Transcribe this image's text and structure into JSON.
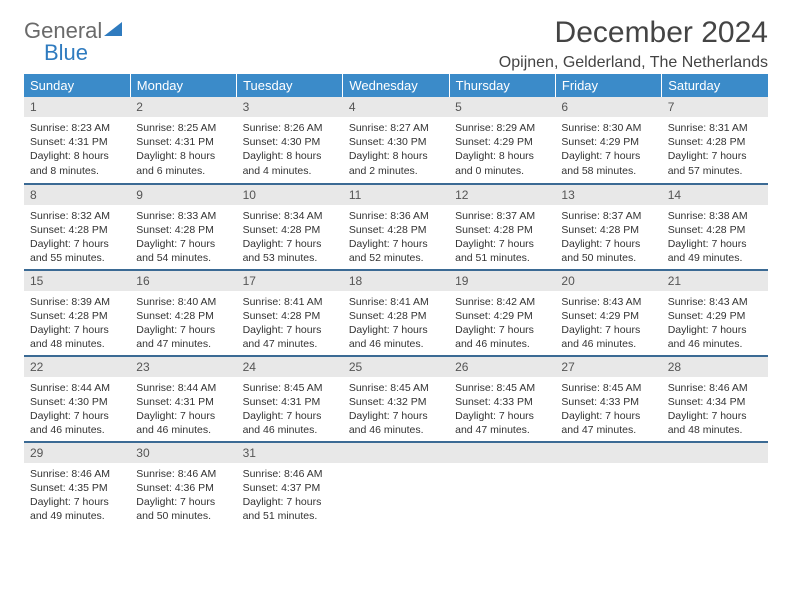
{
  "brand": {
    "part1": "General",
    "part2": "Blue"
  },
  "title": "December 2024",
  "location": "Opijnen, Gelderland, The Netherlands",
  "colors": {
    "header_bg": "#3b8bc9",
    "header_text": "#ffffff",
    "daynum_bg": "#e8e8e8",
    "border": "#3b6a94",
    "text": "#333333",
    "brand_gray": "#6a6a6a",
    "brand_blue": "#2f7bbf",
    "page_bg": "#ffffff"
  },
  "weekdays": [
    "Sunday",
    "Monday",
    "Tuesday",
    "Wednesday",
    "Thursday",
    "Friday",
    "Saturday"
  ],
  "weeks": [
    [
      {
        "n": "1",
        "sr": "8:23 AM",
        "ss": "4:31 PM",
        "dl": "8 hours and 8 minutes."
      },
      {
        "n": "2",
        "sr": "8:25 AM",
        "ss": "4:31 PM",
        "dl": "8 hours and 6 minutes."
      },
      {
        "n": "3",
        "sr": "8:26 AM",
        "ss": "4:30 PM",
        "dl": "8 hours and 4 minutes."
      },
      {
        "n": "4",
        "sr": "8:27 AM",
        "ss": "4:30 PM",
        "dl": "8 hours and 2 minutes."
      },
      {
        "n": "5",
        "sr": "8:29 AM",
        "ss": "4:29 PM",
        "dl": "8 hours and 0 minutes."
      },
      {
        "n": "6",
        "sr": "8:30 AM",
        "ss": "4:29 PM",
        "dl": "7 hours and 58 minutes."
      },
      {
        "n": "7",
        "sr": "8:31 AM",
        "ss": "4:28 PM",
        "dl": "7 hours and 57 minutes."
      }
    ],
    [
      {
        "n": "8",
        "sr": "8:32 AM",
        "ss": "4:28 PM",
        "dl": "7 hours and 55 minutes."
      },
      {
        "n": "9",
        "sr": "8:33 AM",
        "ss": "4:28 PM",
        "dl": "7 hours and 54 minutes."
      },
      {
        "n": "10",
        "sr": "8:34 AM",
        "ss": "4:28 PM",
        "dl": "7 hours and 53 minutes."
      },
      {
        "n": "11",
        "sr": "8:36 AM",
        "ss": "4:28 PM",
        "dl": "7 hours and 52 minutes."
      },
      {
        "n": "12",
        "sr": "8:37 AM",
        "ss": "4:28 PM",
        "dl": "7 hours and 51 minutes."
      },
      {
        "n": "13",
        "sr": "8:37 AM",
        "ss": "4:28 PM",
        "dl": "7 hours and 50 minutes."
      },
      {
        "n": "14",
        "sr": "8:38 AM",
        "ss": "4:28 PM",
        "dl": "7 hours and 49 minutes."
      }
    ],
    [
      {
        "n": "15",
        "sr": "8:39 AM",
        "ss": "4:28 PM",
        "dl": "7 hours and 48 minutes."
      },
      {
        "n": "16",
        "sr": "8:40 AM",
        "ss": "4:28 PM",
        "dl": "7 hours and 47 minutes."
      },
      {
        "n": "17",
        "sr": "8:41 AM",
        "ss": "4:28 PM",
        "dl": "7 hours and 47 minutes."
      },
      {
        "n": "18",
        "sr": "8:41 AM",
        "ss": "4:28 PM",
        "dl": "7 hours and 46 minutes."
      },
      {
        "n": "19",
        "sr": "8:42 AM",
        "ss": "4:29 PM",
        "dl": "7 hours and 46 minutes."
      },
      {
        "n": "20",
        "sr": "8:43 AM",
        "ss": "4:29 PM",
        "dl": "7 hours and 46 minutes."
      },
      {
        "n": "21",
        "sr": "8:43 AM",
        "ss": "4:29 PM",
        "dl": "7 hours and 46 minutes."
      }
    ],
    [
      {
        "n": "22",
        "sr": "8:44 AM",
        "ss": "4:30 PM",
        "dl": "7 hours and 46 minutes."
      },
      {
        "n": "23",
        "sr": "8:44 AM",
        "ss": "4:31 PM",
        "dl": "7 hours and 46 minutes."
      },
      {
        "n": "24",
        "sr": "8:45 AM",
        "ss": "4:31 PM",
        "dl": "7 hours and 46 minutes."
      },
      {
        "n": "25",
        "sr": "8:45 AM",
        "ss": "4:32 PM",
        "dl": "7 hours and 46 minutes."
      },
      {
        "n": "26",
        "sr": "8:45 AM",
        "ss": "4:33 PM",
        "dl": "7 hours and 47 minutes."
      },
      {
        "n": "27",
        "sr": "8:45 AM",
        "ss": "4:33 PM",
        "dl": "7 hours and 47 minutes."
      },
      {
        "n": "28",
        "sr": "8:46 AM",
        "ss": "4:34 PM",
        "dl": "7 hours and 48 minutes."
      }
    ],
    [
      {
        "n": "29",
        "sr": "8:46 AM",
        "ss": "4:35 PM",
        "dl": "7 hours and 49 minutes."
      },
      {
        "n": "30",
        "sr": "8:46 AM",
        "ss": "4:36 PM",
        "dl": "7 hours and 50 minutes."
      },
      {
        "n": "31",
        "sr": "8:46 AM",
        "ss": "4:37 PM",
        "dl": "7 hours and 51 minutes."
      },
      null,
      null,
      null,
      null
    ]
  ],
  "labels": {
    "sunrise": "Sunrise:",
    "sunset": "Sunset:",
    "daylight": "Daylight:"
  }
}
